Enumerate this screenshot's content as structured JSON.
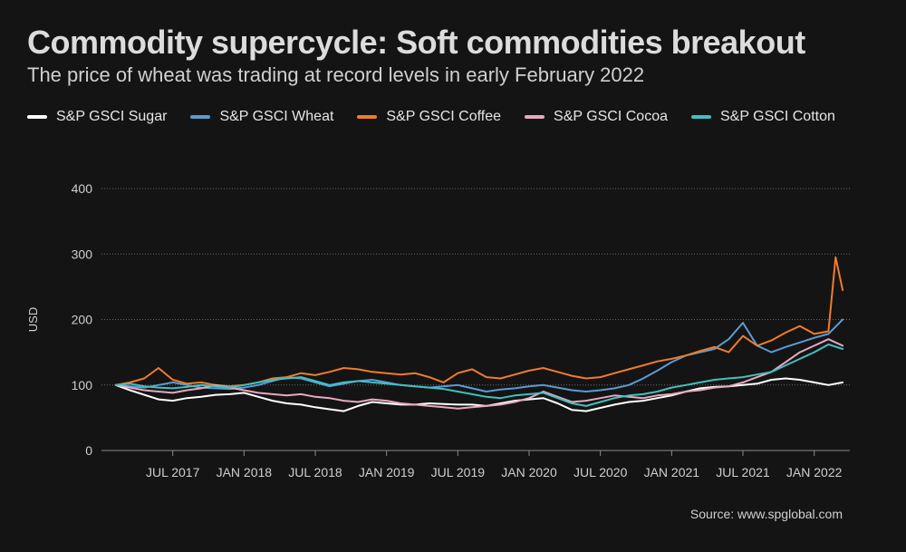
{
  "title": "Commodity supercycle: Soft commodities breakout",
  "subtitle": "The price of wheat was trading at record levels in early February 2022",
  "source": "Source: www.spglobal.com",
  "chart_data": {
    "type": "line",
    "title": "Commodity supercycle: Soft commodities breakout",
    "subtitle": "The price of wheat was trading at record levels in early February 2022",
    "xlabel": "",
    "ylabel": "USD",
    "ylim": [
      0,
      400
    ],
    "yticks": [
      0,
      100,
      200,
      300,
      400
    ],
    "xlim": [
      2017.0,
      2022.25
    ],
    "xticks": [
      {
        "value": 2017.5,
        "label": "JUL 2017"
      },
      {
        "value": 2018.0,
        "label": "JAN 2018"
      },
      {
        "value": 2018.5,
        "label": "JUL 2018"
      },
      {
        "value": 2019.0,
        "label": "JAN 2019"
      },
      {
        "value": 2019.5,
        "label": "JUL 2019"
      },
      {
        "value": 2020.0,
        "label": "JAN 2020"
      },
      {
        "value": 2020.5,
        "label": "JUL 2020"
      },
      {
        "value": 2021.0,
        "label": "JAN 2021"
      },
      {
        "value": 2021.5,
        "label": "JUL 2021"
      },
      {
        "value": 2022.0,
        "label": "JAN 2022"
      }
    ],
    "grid": true,
    "legend_position": "top",
    "series": [
      {
        "name": "S&P GSCI Sugar",
        "color": "#ffffff",
        "x": [
          2017.1,
          2017.2,
          2017.3,
          2017.4,
          2017.5,
          2017.6,
          2017.7,
          2017.8,
          2017.9,
          2018.0,
          2018.1,
          2018.2,
          2018.3,
          2018.4,
          2018.5,
          2018.6,
          2018.7,
          2018.8,
          2018.9,
          2019.0,
          2019.1,
          2019.2,
          2019.3,
          2019.4,
          2019.5,
          2019.6,
          2019.7,
          2019.8,
          2019.9,
          2020.0,
          2020.1,
          2020.2,
          2020.3,
          2020.4,
          2020.5,
          2020.6,
          2020.7,
          2020.8,
          2020.9,
          2021.0,
          2021.1,
          2021.2,
          2021.3,
          2021.4,
          2021.5,
          2021.6,
          2021.7,
          2021.8,
          2021.9,
          2022.0,
          2022.1,
          2022.2
        ],
        "values": [
          100,
          92,
          85,
          78,
          76,
          80,
          82,
          85,
          86,
          88,
          82,
          76,
          72,
          70,
          66,
          63,
          60,
          68,
          74,
          72,
          70,
          70,
          72,
          71,
          70,
          70,
          68,
          72,
          76,
          78,
          80,
          72,
          62,
          60,
          65,
          70,
          74,
          76,
          80,
          84,
          90,
          95,
          97,
          98,
          100,
          102,
          108,
          110,
          108,
          104,
          100,
          104
        ]
      },
      {
        "name": "S&P GSCI Wheat",
        "color": "#5b9bd5",
        "x": [
          2017.1,
          2017.2,
          2017.3,
          2017.4,
          2017.5,
          2017.6,
          2017.7,
          2017.8,
          2017.9,
          2018.0,
          2018.1,
          2018.2,
          2018.3,
          2018.4,
          2018.5,
          2018.6,
          2018.7,
          2018.8,
          2018.9,
          2019.0,
          2019.1,
          2019.2,
          2019.3,
          2019.4,
          2019.5,
          2019.6,
          2019.7,
          2019.8,
          2019.9,
          2020.0,
          2020.1,
          2020.2,
          2020.3,
          2020.4,
          2020.5,
          2020.6,
          2020.7,
          2020.8,
          2020.9,
          2021.0,
          2021.1,
          2021.2,
          2021.3,
          2021.4,
          2021.5,
          2021.6,
          2021.7,
          2021.8,
          2021.9,
          2022.0,
          2022.1,
          2022.2
        ],
        "values": [
          100,
          98,
          96,
          100,
          104,
          100,
          96,
          95,
          94,
          96,
          100,
          106,
          112,
          110,
          104,
          98,
          102,
          106,
          108,
          104,
          100,
          98,
          96,
          98,
          100,
          95,
          90,
          93,
          95,
          98,
          100,
          96,
          92,
          90,
          92,
          95,
          100,
          110,
          122,
          135,
          145,
          150,
          155,
          170,
          195,
          160,
          150,
          158,
          165,
          172,
          178,
          200
        ]
      },
      {
        "name": "S&P GSCI Coffee",
        "color": "#f07c2a",
        "x": [
          2017.1,
          2017.2,
          2017.3,
          2017.4,
          2017.5,
          2017.6,
          2017.7,
          2017.8,
          2017.9,
          2018.0,
          2018.1,
          2018.2,
          2018.3,
          2018.4,
          2018.5,
          2018.6,
          2018.7,
          2018.8,
          2018.9,
          2019.0,
          2019.1,
          2019.2,
          2019.3,
          2019.4,
          2019.5,
          2019.6,
          2019.7,
          2019.8,
          2019.9,
          2020.0,
          2020.1,
          2020.2,
          2020.3,
          2020.4,
          2020.5,
          2020.6,
          2020.7,
          2020.8,
          2020.9,
          2021.0,
          2021.1,
          2021.2,
          2021.3,
          2021.4,
          2021.5,
          2021.6,
          2021.7,
          2021.8,
          2021.9,
          2022.0,
          2022.1,
          2022.15,
          2022.2
        ],
        "values": [
          100,
          104,
          110,
          126,
          108,
          102,
          104,
          100,
          98,
          100,
          104,
          110,
          112,
          118,
          115,
          120,
          126,
          124,
          120,
          118,
          116,
          118,
          112,
          104,
          118,
          124,
          112,
          110,
          116,
          122,
          126,
          120,
          114,
          110,
          112,
          118,
          124,
          130,
          136,
          140,
          145,
          152,
          158,
          150,
          175,
          160,
          168,
          180,
          190,
          178,
          182,
          295,
          245
        ]
      },
      {
        "name": "S&P GSCI Cocoa",
        "color": "#e8a8c0",
        "x": [
          2017.1,
          2017.2,
          2017.3,
          2017.4,
          2017.5,
          2017.6,
          2017.7,
          2017.8,
          2017.9,
          2018.0,
          2018.1,
          2018.2,
          2018.3,
          2018.4,
          2018.5,
          2018.6,
          2018.7,
          2018.8,
          2018.9,
          2019.0,
          2019.1,
          2019.2,
          2019.3,
          2019.4,
          2019.5,
          2019.6,
          2019.7,
          2019.8,
          2019.9,
          2020.0,
          2020.1,
          2020.2,
          2020.3,
          2020.4,
          2020.5,
          2020.6,
          2020.7,
          2020.8,
          2020.9,
          2021.0,
          2021.1,
          2021.2,
          2021.3,
          2021.4,
          2021.5,
          2021.6,
          2021.7,
          2021.8,
          2021.9,
          2022.0,
          2022.1,
          2022.2
        ],
        "values": [
          100,
          96,
          92,
          90,
          88,
          92,
          95,
          100,
          96,
          92,
          88,
          86,
          84,
          86,
          82,
          80,
          76,
          74,
          78,
          76,
          72,
          70,
          68,
          66,
          64,
          66,
          68,
          70,
          74,
          80,
          90,
          82,
          74,
          76,
          80,
          84,
          82,
          80,
          84,
          86,
          90,
          92,
          96,
          98,
          104,
          112,
          120,
          135,
          150,
          160,
          170,
          160
        ]
      },
      {
        "name": "S&P GSCI Cotton",
        "color": "#3fc1c0",
        "x": [
          2017.1,
          2017.2,
          2017.3,
          2017.4,
          2017.5,
          2017.6,
          2017.7,
          2017.8,
          2017.9,
          2018.0,
          2018.1,
          2018.2,
          2018.3,
          2018.4,
          2018.5,
          2018.6,
          2018.7,
          2018.8,
          2018.9,
          2019.0,
          2019.1,
          2019.2,
          2019.3,
          2019.4,
          2019.5,
          2019.6,
          2019.7,
          2019.8,
          2019.9,
          2020.0,
          2020.1,
          2020.2,
          2020.3,
          2020.4,
          2020.5,
          2020.6,
          2020.7,
          2020.8,
          2020.9,
          2021.0,
          2021.1,
          2021.2,
          2021.3,
          2021.4,
          2021.5,
          2021.6,
          2021.7,
          2021.8,
          2021.9,
          2022.0,
          2022.1,
          2022.2
        ],
        "values": [
          100,
          102,
          98,
          96,
          95,
          97,
          100,
          98,
          96,
          100,
          104,
          108,
          110,
          112,
          106,
          100,
          104,
          106,
          104,
          102,
          100,
          98,
          96,
          94,
          90,
          86,
          82,
          80,
          84,
          86,
          88,
          80,
          72,
          68,
          74,
          80,
          84,
          86,
          90,
          96,
          100,
          104,
          108,
          110,
          112,
          116,
          120,
          130,
          140,
          150,
          162,
          155
        ]
      }
    ]
  }
}
